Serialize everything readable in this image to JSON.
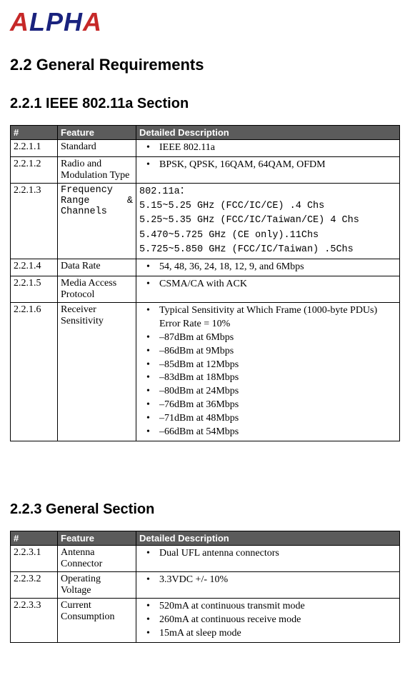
{
  "logo": {
    "a1": "A",
    "mid": "LPH",
    "a2": "A"
  },
  "section_title": "2.2 General Requirements",
  "subsection1_title": "2.2.1 IEEE 802.11a Section",
  "subsection2_title": "2.2.3 General Section",
  "headers": {
    "num": "#",
    "feature": "Feature",
    "detail": "Detailed Description"
  },
  "t1": {
    "r1": {
      "num": "2.2.1.1",
      "feature": "Standard",
      "d1": "IEEE 802.11a"
    },
    "r2": {
      "num": "2.2.1.2",
      "feature": "Radio and Modulation Type",
      "d1": "BPSK, QPSK, 16QAM, 64QAM, OFDM"
    },
    "r3": {
      "num": "2.2.1.3",
      "feat_l1": "Frequency",
      "feat_l2a": "Range",
      "feat_l2b": "&",
      "feat_l3": "Channels",
      "d1": "802.11a：",
      "d2": "5.15~5.25 GHz (FCC/IC/CE) .4 Chs",
      "d3": "5.25~5.35 GHz (FCC/IC/Taiwan/CE) 4 Chs",
      "d4": "5.470~5.725 GHz (CE only).11Chs",
      "d5": "5.725~5.850 GHz (FCC/IC/Taiwan) .5Chs"
    },
    "r4": {
      "num": "2.2.1.4",
      "feature": "Data Rate",
      "d1": "54, 48, 36, 24, 18, 12, 9, and 6Mbps"
    },
    "r5": {
      "num": "2.2.1.5",
      "feature": "Media Access Protocol",
      "d1": "CSMA/CA with ACK"
    },
    "r6": {
      "num": "2.2.1.6",
      "feature": "Receiver Sensitivity",
      "d1": "Typical Sensitivity at Which Frame (1000-byte PDUs) Error Rate = 10%",
      "d2": "–87dBm at 6Mbps",
      "d3": "–86dBm at 9Mbps",
      "d4": "–85dBm at 12Mbps",
      "d5": "–83dBm at 18Mbps",
      "d6": "–80dBm at 24Mbps",
      "d7": "–76dBm at 36Mbps",
      "d8": "–71dBm at 48Mbps",
      "d9": "–66dBm at 54Mbps"
    }
  },
  "t2": {
    "r1": {
      "num": "2.2.3.1",
      "feature": "Antenna Connector",
      "d1": "Dual UFL antenna connectors"
    },
    "r2": {
      "num": "2.2.3.2",
      "feature": "Operating Voltage",
      "d1": "3.3VDC +/- 10%"
    },
    "r3": {
      "num": "2.2.3.3",
      "feature": "Current Consumption",
      "d1": "520mA at continuous transmit mode",
      "d2": "260mA at continuous receive mode",
      "d3": "15mA at sleep mode"
    }
  }
}
